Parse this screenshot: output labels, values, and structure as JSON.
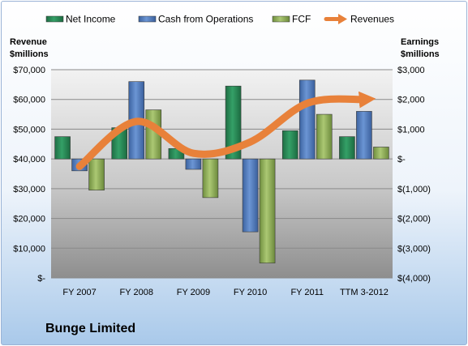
{
  "company": "Bunge Limited",
  "chart_data": {
    "type": "bar",
    "title": "",
    "categories": [
      "FY 2007",
      "FY 2008",
      "FY 2009",
      "FY 2010",
      "FY 2011",
      "TTM 3-2012"
    ],
    "left_axis": {
      "label_lines": [
        "Revenue",
        "$millions"
      ],
      "ylim": [
        0,
        70000
      ],
      "ticks": [
        0,
        10000,
        20000,
        30000,
        40000,
        50000,
        60000,
        70000
      ],
      "tick_labels": [
        "$-",
        "$10,000",
        "$20,000",
        "$30,000",
        "$40,000",
        "$50,000",
        "$60,000",
        "$70,000"
      ]
    },
    "right_axis": {
      "label_lines": [
        "Earnings",
        "$millions"
      ],
      "ylim": [
        -4000,
        3000
      ],
      "ticks": [
        -4000,
        -3000,
        -2000,
        -1000,
        0,
        1000,
        2000,
        3000
      ],
      "tick_labels": [
        "$(4,000)",
        "$(3,000)",
        "$(2,000)",
        "$(1,000)",
        "$-",
        "$1,000",
        "$2,000",
        "$3,000"
      ]
    },
    "series": [
      {
        "name": "Net Income",
        "type": "bar",
        "axis": "right",
        "color": "#2e8b57",
        "values": [
          750,
          1050,
          350,
          2450,
          950,
          750
        ]
      },
      {
        "name": "Cash from Operations",
        "type": "bar",
        "axis": "right",
        "color": "#4f7ec0",
        "values": [
          -400,
          2600,
          -350,
          -2450,
          2650,
          1600
        ]
      },
      {
        "name": "FCF",
        "type": "bar",
        "axis": "right",
        "color": "#93b55a",
        "values": [
          -1050,
          1650,
          -1300,
          -3500,
          1500,
          400
        ]
      },
      {
        "name": "Revenues",
        "type": "line",
        "axis": "left",
        "color": "#e8813a",
        "values": [
          37500,
          52600,
          41900,
          45700,
          58700,
          60000
        ]
      }
    ],
    "grid": true,
    "legend_position": "top"
  }
}
